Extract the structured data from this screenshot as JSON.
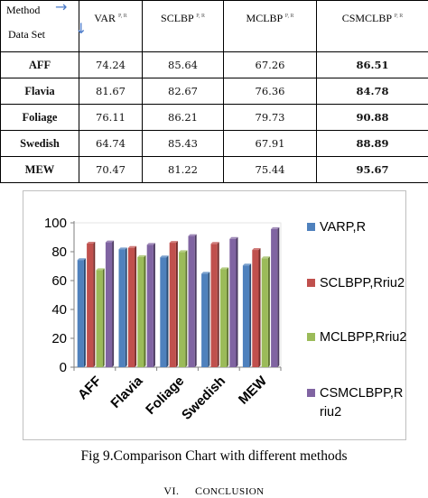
{
  "table": {
    "header": {
      "method_label": "Method",
      "dataset_label": "Data Set",
      "columns": [
        "VAR",
        "SCLBP",
        "MCLBP",
        "CSMCLBP"
      ],
      "superscripts": [
        "P, R",
        "P, R",
        "P, R",
        "P, R"
      ]
    },
    "rows": [
      {
        "name": "AFF",
        "values": [
          "74.24",
          "85.64",
          "67.26",
          "86.51"
        ]
      },
      {
        "name": "Flavia",
        "values": [
          "81.67",
          "82.67",
          "76.36",
          "84.78"
        ]
      },
      {
        "name": "Foliage",
        "values": [
          "76.11",
          "86.21",
          "79.73",
          "90.88"
        ]
      },
      {
        "name": "Swedish",
        "values": [
          "64.74",
          "85.43",
          "67.91",
          "88.89"
        ]
      },
      {
        "name": "MEW",
        "values": [
          "70.47",
          "81.22",
          "75.44",
          "95.67"
        ]
      }
    ]
  },
  "chart_data": {
    "type": "bar",
    "categories": [
      "AFF",
      "Flavia",
      "Foliage",
      "Swedish",
      "MEW"
    ],
    "series": [
      {
        "name": "VARP,R",
        "values": [
          74.24,
          81.67,
          76.11,
          64.74,
          70.47
        ]
      },
      {
        "name": "SCLBPP,Rriu2",
        "values": [
          85.64,
          82.67,
          86.21,
          85.43,
          81.22
        ]
      },
      {
        "name": "MCLBPP,Rriu2",
        "values": [
          67.26,
          76.36,
          79.73,
          67.91,
          75.44
        ]
      },
      {
        "name": "CSMCLBPP,Rriu2",
        "values": [
          86.51,
          84.78,
          90.88,
          88.89,
          95.67
        ]
      }
    ],
    "yticks": [
      "0",
      "20",
      "40",
      "60",
      "80",
      "100"
    ],
    "ylim": [
      0,
      100
    ],
    "grid": false,
    "legend": "right",
    "colors": [
      "#4f81bd",
      "#c0504d",
      "#9bbb59",
      "#8064a2"
    ],
    "shade_colors": [
      "#2c4d75",
      "#772c2a",
      "#5f7530",
      "#4d3b62"
    ]
  },
  "caption": "Fig 9.Comparison Chart with different methods",
  "section": {
    "number": "VI.",
    "title_first": "C",
    "title_rest": "ONCLUSION"
  }
}
